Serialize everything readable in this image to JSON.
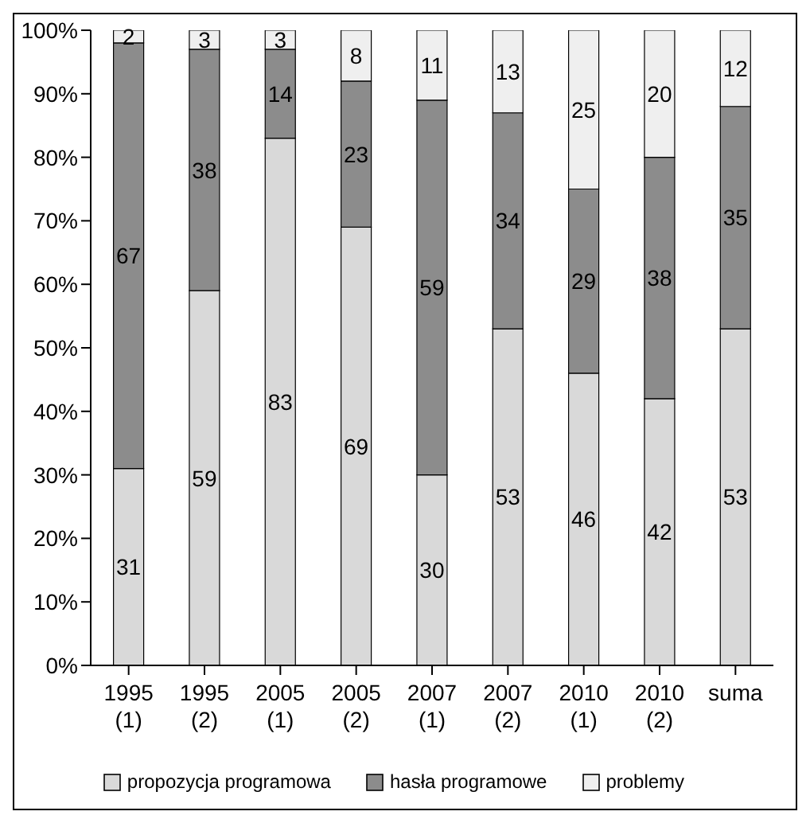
{
  "chart_data": {
    "type": "bar",
    "stacked": true,
    "categories": [
      "1995 (1)",
      "1995 (2)",
      "2005 (1)",
      "2005 (2)",
      "2007 (1)",
      "2007 (2)",
      "2010 (1)",
      "2010 (2)",
      "suma"
    ],
    "series": [
      {
        "name": "propozycja programowa",
        "color": "#d9d9d9",
        "values": [
          31,
          59,
          83,
          69,
          30,
          53,
          46,
          42,
          53
        ]
      },
      {
        "name": "hasła programowe",
        "color": "#8c8c8c",
        "values": [
          67,
          38,
          14,
          23,
          59,
          34,
          29,
          38,
          35
        ]
      },
      {
        "name": "problemy",
        "color": "#efefef",
        "values": [
          2,
          3,
          3,
          8,
          11,
          13,
          25,
          20,
          12
        ]
      }
    ],
    "ylim": [
      0,
      100
    ],
    "yticks": [
      {
        "value": 0,
        "label": "0%"
      },
      {
        "value": 10,
        "label": "10%"
      },
      {
        "value": 20,
        "label": "20%"
      },
      {
        "value": 30,
        "label": "30%"
      },
      {
        "value": 40,
        "label": "40%"
      },
      {
        "value": 50,
        "label": "50%"
      },
      {
        "value": 60,
        "label": "60%"
      },
      {
        "value": 70,
        "label": "70%"
      },
      {
        "value": 80,
        "label": "80%"
      },
      {
        "value": 90,
        "label": "90%"
      },
      {
        "value": 100,
        "label": "100%"
      }
    ],
    "grid": false,
    "legend": "bottom",
    "data_labels": true
  }
}
